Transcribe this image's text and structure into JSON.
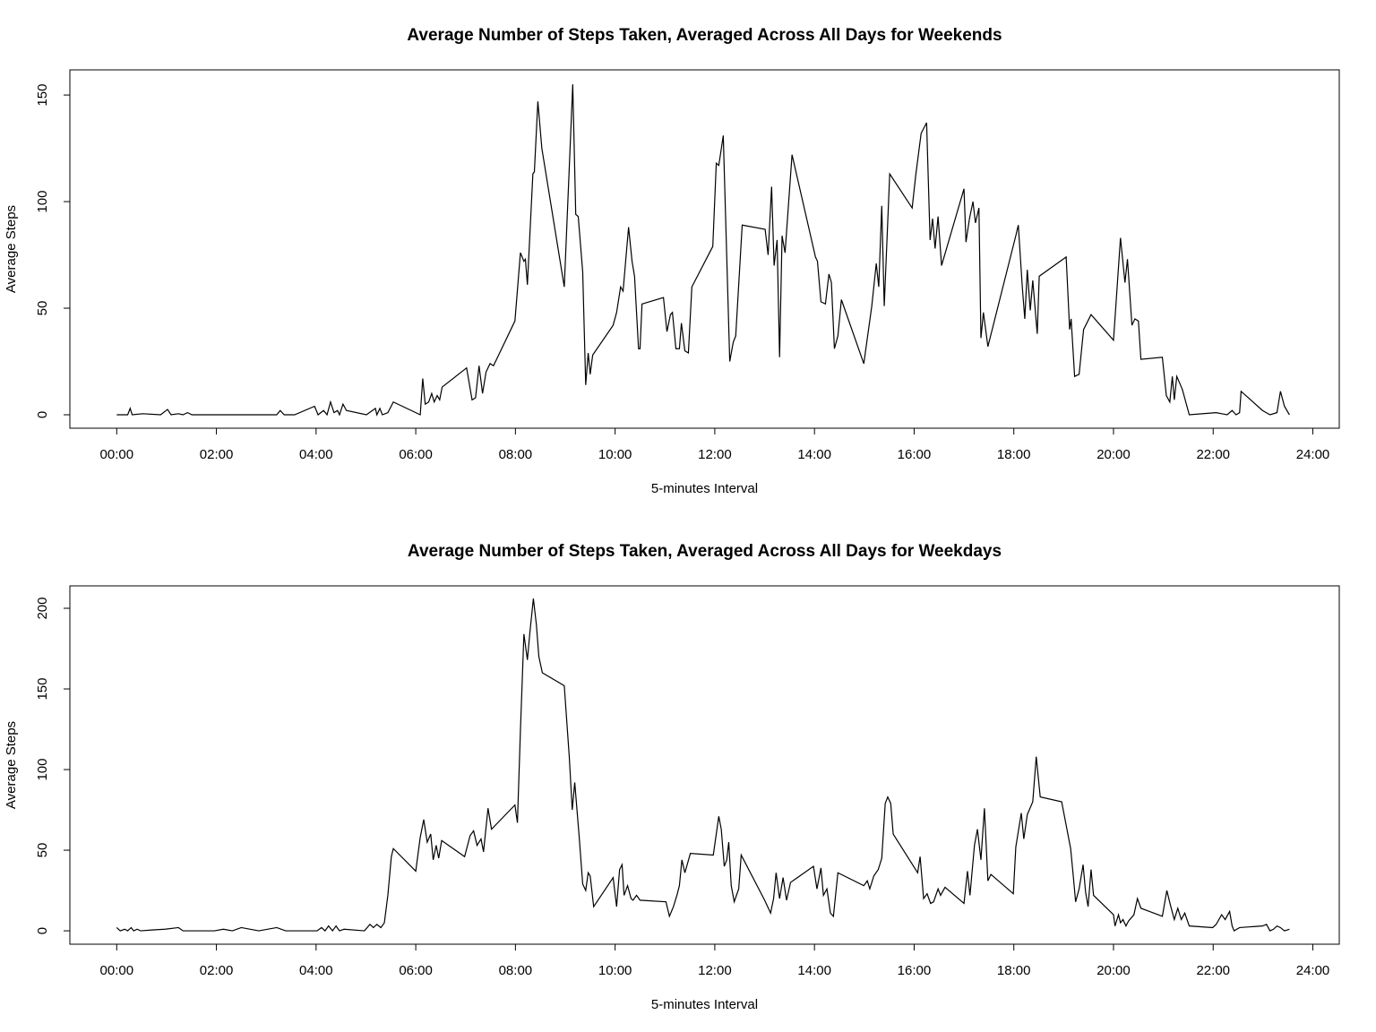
{
  "chart_data": [
    {
      "type": "line",
      "title": "Average Number of Steps Taken, Averaged Across All Days for Weekends",
      "xlabel": "5-minutes Interval",
      "ylabel": "Average Steps",
      "xlim": [
        -0.94,
        24.53
      ],
      "ylim": [
        -6.3,
        161.8
      ],
      "xticks": [
        {
          "value": 0,
          "label": "00:00"
        },
        {
          "value": 2,
          "label": "02:00"
        },
        {
          "value": 4,
          "label": "04:00"
        },
        {
          "value": 6,
          "label": "06:00"
        },
        {
          "value": 8,
          "label": "08:00"
        },
        {
          "value": 10,
          "label": "10:00"
        },
        {
          "value": 12,
          "label": "12:00"
        },
        {
          "value": 14,
          "label": "14:00"
        },
        {
          "value": 16,
          "label": "16:00"
        },
        {
          "value": 18,
          "label": "18:00"
        },
        {
          "value": 20,
          "label": "20:00"
        },
        {
          "value": 22,
          "label": "22:00"
        },
        {
          "value": 24,
          "label": "24:00"
        }
      ],
      "yticks": [
        0,
        50,
        100,
        150
      ],
      "color": "#000000",
      "x": [
        0,
        0.22,
        0.27,
        0.31,
        0.52,
        0.88,
        1.02,
        1.09,
        1.24,
        1.33,
        1.42,
        1.51,
        2.14,
        3.21,
        3.28,
        3.36,
        3.57,
        3.97,
        4.04,
        4.15,
        4.22,
        4.29,
        4.36,
        4.43,
        4.47,
        4.54,
        4.61,
        5.01,
        5.19,
        5.22,
        5.28,
        5.33,
        5.44,
        5.55,
        6.0,
        6.09,
        6.14,
        6.19,
        6.26,
        6.32,
        6.37,
        6.43,
        6.48,
        6.53,
        7.02,
        7.13,
        7.2,
        7.27,
        7.34,
        7.41,
        7.49,
        7.56,
        7.99,
        8.1,
        8.17,
        8.2,
        8.24,
        8.35,
        8.38,
        8.45,
        8.53,
        8.98,
        9.15,
        9.21,
        9.26,
        9.35,
        9.41,
        9.46,
        9.5,
        9.55,
        9.96,
        10.03,
        10.11,
        10.16,
        10.27,
        10.34,
        10.39,
        10.47,
        10.5,
        10.54,
        10.97,
        11.04,
        11.11,
        11.15,
        11.22,
        11.29,
        11.33,
        11.4,
        11.47,
        11.54,
        11.96,
        12.03,
        12.08,
        12.1,
        12.17,
        12.3,
        12.37,
        12.42,
        12.55,
        13.01,
        13.07,
        13.14,
        13.19,
        13.25,
        13.3,
        13.35,
        13.41,
        13.55,
        14.02,
        14.06,
        14.13,
        14.22,
        14.29,
        14.34,
        14.4,
        14.47,
        14.54,
        14.99,
        15.15,
        15.24,
        15.29,
        15.35,
        15.4,
        15.51,
        15.96,
        16.03,
        16.14,
        16.25,
        16.32,
        16.37,
        16.42,
        16.48,
        16.55,
        17.0,
        17.04,
        17.11,
        17.18,
        17.23,
        17.3,
        17.34,
        17.39,
        17.48,
        18.04,
        18.09,
        18.17,
        18.22,
        18.27,
        18.33,
        18.38,
        18.47,
        18.51,
        19.05,
        19.12,
        19.15,
        19.22,
        19.31,
        19.4,
        19.55,
        20.0,
        20.05,
        20.14,
        20.23,
        20.28,
        20.37,
        20.43,
        20.5,
        20.55,
        20.98,
        21.06,
        21.13,
        21.18,
        21.22,
        21.27,
        21.38,
        21.52,
        22.06,
        22.17,
        22.28,
        22.38,
        22.46,
        22.53,
        22.56,
        22.99,
        23.14,
        23.28,
        23.35,
        23.43,
        23.53
      ],
      "values": [
        0,
        0,
        3,
        0,
        0.5,
        0,
        2.5,
        0,
        0.5,
        0,
        1,
        0,
        0,
        0,
        2,
        0,
        0,
        4,
        0,
        2,
        0,
        6,
        1,
        2,
        0,
        5,
        2,
        0,
        3,
        0,
        3,
        0,
        1,
        6,
        1,
        0,
        17,
        5,
        6,
        10,
        6,
        9,
        7,
        13,
        22,
        7,
        8,
        23,
        10,
        20,
        24,
        23,
        44,
        76,
        72,
        73,
        61,
        113,
        114,
        147,
        125,
        60,
        155,
        94,
        93,
        67,
        14,
        29,
        19,
        28,
        42,
        48,
        60,
        58,
        88,
        72,
        65,
        31,
        31,
        52,
        55,
        39,
        47,
        48,
        31,
        31,
        43,
        30,
        29,
        60,
        79,
        118,
        117,
        120,
        131,
        25,
        34,
        37,
        89,
        87,
        75,
        107,
        70,
        82,
        27,
        84,
        76,
        122,
        74,
        72,
        53,
        52,
        66,
        62,
        31,
        37,
        54,
        24,
        51,
        71,
        60,
        98,
        51,
        113,
        97,
        112,
        132,
        137,
        82,
        92,
        78,
        93,
        70,
        106,
        81,
        92,
        100,
        90,
        97,
        36,
        48,
        32,
        84,
        89,
        60,
        45,
        68,
        49,
        63,
        38,
        65,
        74,
        40,
        45,
        18,
        19,
        40,
        47,
        35,
        52,
        83,
        62,
        73,
        42,
        45,
        44,
        26,
        27,
        9,
        6,
        18,
        7,
        18,
        12,
        0,
        1,
        0.5,
        0,
        2,
        0,
        1,
        11,
        2,
        0,
        1,
        11,
        4,
        0
      ]
    },
    {
      "type": "line",
      "title": "Average Number of Steps Taken, Averaged Across All Days for Weekdays",
      "xlabel": "5-minutes Interval",
      "ylabel": "Average Steps",
      "xlim": [
        -0.94,
        24.53
      ],
      "ylim": [
        -8.3,
        213.9
      ],
      "xticks": [
        {
          "value": 0,
          "label": "00:00"
        },
        {
          "value": 2,
          "label": "02:00"
        },
        {
          "value": 4,
          "label": "04:00"
        },
        {
          "value": 6,
          "label": "06:00"
        },
        {
          "value": 8,
          "label": "08:00"
        },
        {
          "value": 10,
          "label": "10:00"
        },
        {
          "value": 12,
          "label": "12:00"
        },
        {
          "value": 14,
          "label": "14:00"
        },
        {
          "value": 16,
          "label": "16:00"
        },
        {
          "value": 18,
          "label": "18:00"
        },
        {
          "value": 20,
          "label": "20:00"
        },
        {
          "value": 22,
          "label": "22:00"
        },
        {
          "value": 24,
          "label": "24:00"
        }
      ],
      "yticks": [
        0,
        50,
        100,
        150,
        200
      ],
      "color": "#000000",
      "x": [
        0,
        0.07,
        0.16,
        0.22,
        0.29,
        0.34,
        0.41,
        0.48,
        0.7,
        0.97,
        1.24,
        1.33,
        1.96,
        2.14,
        2.32,
        2.5,
        2.85,
        3.21,
        3.39,
        4.02,
        4.11,
        4.18,
        4.25,
        4.33,
        4.4,
        4.47,
        4.56,
        4.97,
        5.08,
        5.15,
        5.22,
        5.3,
        5.37,
        5.44,
        5.51,
        5.55,
        6.0,
        6.09,
        6.16,
        6.23,
        6.3,
        6.35,
        6.41,
        6.46,
        6.52,
        6.98,
        7.09,
        7.16,
        7.23,
        7.31,
        7.36,
        7.45,
        7.52,
        7.99,
        8.04,
        8.1,
        8.17,
        8.24,
        8.29,
        8.36,
        8.42,
        8.47,
        8.54,
        8.98,
        9.08,
        9.14,
        9.19,
        9.28,
        9.35,
        9.41,
        9.46,
        9.5,
        9.57,
        9.96,
        10.03,
        10.09,
        10.14,
        10.18,
        10.25,
        10.32,
        10.36,
        10.43,
        10.5,
        11.02,
        11.09,
        11.17,
        11.24,
        11.29,
        11.34,
        11.4,
        11.51,
        11.97,
        12.08,
        12.13,
        12.19,
        12.24,
        12.28,
        12.33,
        12.39,
        12.48,
        12.53,
        13.0,
        13.12,
        13.18,
        13.23,
        13.3,
        13.37,
        13.44,
        13.52,
        13.98,
        14.05,
        14.13,
        14.18,
        14.25,
        14.32,
        14.38,
        14.47,
        14.99,
        15.06,
        15.11,
        15.19,
        15.28,
        15.35,
        15.42,
        15.47,
        15.53,
        15.58,
        16.07,
        16.12,
        16.19,
        16.26,
        16.33,
        16.39,
        16.48,
        16.53,
        16.62,
        17.0,
        17.07,
        17.12,
        17.21,
        17.27,
        17.34,
        17.41,
        17.48,
        17.54,
        17.99,
        18.04,
        18.15,
        18.2,
        18.27,
        18.38,
        18.45,
        18.53,
        18.96,
        19.14,
        19.19,
        19.24,
        19.31,
        19.39,
        19.44,
        19.49,
        19.55,
        19.6,
        20.0,
        20.03,
        20.1,
        20.14,
        20.19,
        20.25,
        20.3,
        20.41,
        20.48,
        20.55,
        20.98,
        21.07,
        21.15,
        21.22,
        21.29,
        21.36,
        21.43,
        21.52,
        21.99,
        22.06,
        22.17,
        22.24,
        22.33,
        22.38,
        22.42,
        22.53,
        22.99,
        23.07,
        23.14,
        23.21,
        23.28,
        23.35,
        23.43,
        23.53
      ],
      "values": [
        2,
        0,
        1,
        0,
        2,
        0,
        1,
        0,
        0.5,
        1,
        2,
        0,
        0,
        1,
        0,
        2,
        0,
        2,
        0,
        0,
        2,
        0,
        3,
        0,
        3,
        0,
        1,
        0,
        4,
        2,
        4,
        2,
        5,
        22,
        46,
        51,
        37,
        58,
        69,
        55,
        60,
        44,
        53,
        45,
        56,
        46,
        59,
        62,
        53,
        57,
        49,
        76,
        63,
        78,
        67,
        124,
        184,
        168,
        185,
        206,
        190,
        170,
        160,
        152,
        108,
        75,
        92,
        58,
        29,
        25,
        36,
        34,
        15,
        33,
        15,
        38,
        41,
        22,
        28,
        20,
        19,
        22,
        19,
        18,
        9,
        15,
        22,
        28,
        44,
        36,
        48,
        47,
        71,
        63,
        40,
        44,
        55,
        28,
        18,
        26,
        47,
        19,
        11,
        20,
        36,
        20,
        33,
        19,
        30,
        40,
        26,
        39,
        22,
        26,
        11,
        9,
        36,
        28,
        31,
        26,
        34,
        38,
        45,
        79,
        83,
        79,
        60,
        36,
        46,
        20,
        23,
        17,
        18,
        26,
        22,
        27,
        17,
        37,
        22,
        53,
        63,
        44,
        76,
        31,
        35,
        23,
        52,
        73,
        57,
        72,
        80,
        108,
        83,
        80,
        51,
        35,
        18,
        26,
        41,
        24,
        15,
        38,
        22,
        10,
        3,
        10,
        5,
        7,
        3,
        6,
        10,
        20,
        14,
        9,
        25,
        15,
        7,
        14,
        7,
        11,
        3,
        2,
        4,
        10,
        7,
        12,
        3,
        0,
        2,
        3,
        4,
        0,
        1,
        3,
        2,
        0,
        1
      ]
    }
  ]
}
